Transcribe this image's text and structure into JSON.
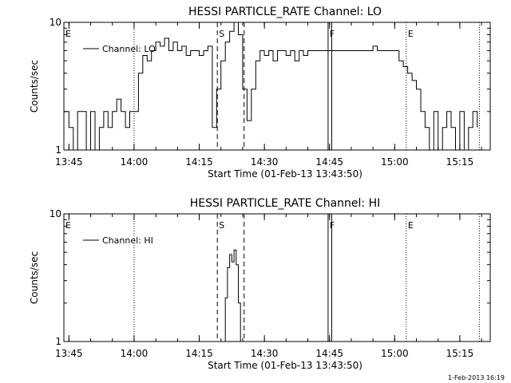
{
  "stamp": "1-Feb-2013 16:19",
  "xlabel": "Start Time (01-Feb-13 13:43:50)",
  "ylabel": "Counts/sec",
  "chart_data": [
    {
      "type": "line",
      "title": "HESSI PARTICLE_RATE Channel: LO",
      "legend": "Channel: LO",
      "xrange": [
        "13:43:50",
        "15:22:00"
      ],
      "ylim": [
        1,
        10
      ],
      "log_y": true,
      "x_ticks": [
        "13:45",
        "14:00",
        "14:15",
        "14:30",
        "14:45",
        "15:00",
        "15:15"
      ],
      "y_ticks": [
        "1",
        "10"
      ],
      "markers": [
        {
          "label": "E",
          "time": "13:43:50",
          "style": "dotted"
        },
        {
          "label": "",
          "time": "14:00:00",
          "style": "dotted"
        },
        {
          "label": "S",
          "time": "14:19:10",
          "style": "dashed"
        },
        {
          "label": "",
          "time": "14:25:20",
          "style": "dashed"
        },
        {
          "label": "F",
          "time": "14:44:40",
          "style": "solid"
        },
        {
          "label": "",
          "time": "14:45:30",
          "style": "solid"
        },
        {
          "label": "E",
          "time": "15:02:40",
          "style": "dotted"
        },
        {
          "label": "",
          "time": "15:19:30",
          "style": "dotted"
        }
      ],
      "series": [
        {
          "x": [
            "13:44:00",
            "13:45:00",
            "13:46:00",
            "13:47:00",
            "13:48:00",
            "13:49:00",
            "13:50:00",
            "13:51:00",
            "13:52:00",
            "13:53:00",
            "13:54:00",
            "13:55:00",
            "13:56:00",
            "13:57:00",
            "13:58:00",
            "13:59:00",
            "14:00:00",
            "14:01:00",
            "14:02:00",
            "14:03:00",
            "14:04:00",
            "14:05:00",
            "14:06:00",
            "14:07:00",
            "14:08:00",
            "14:09:00",
            "14:10:00",
            "14:11:00",
            "14:12:00",
            "14:13:00",
            "14:14:00",
            "14:15:00",
            "14:16:00",
            "14:17:00",
            "14:18:00",
            "14:19:00",
            "14:20:00",
            "14:21:00",
            "14:22:00",
            "14:23:00",
            "14:24:00",
            "14:25:00",
            "14:26:00",
            "14:27:00",
            "14:28:00",
            "14:29:00",
            "14:30:00",
            "14:31:00",
            "14:32:00",
            "14:33:00",
            "14:34:00",
            "14:35:00",
            "14:36:00",
            "14:37:00",
            "14:38:00",
            "14:39:00",
            "14:40:00",
            "14:41:00",
            "14:42:00",
            "14:43:00",
            "14:44:00",
            "14:45:00",
            "14:46:00",
            "14:47:00",
            "14:48:00",
            "14:49:00",
            "14:50:00",
            "14:51:00",
            "14:52:00",
            "14:53:00",
            "14:54:00",
            "14:55:00",
            "14:56:00",
            "14:57:00",
            "14:58:00",
            "14:59:00",
            "15:00:00",
            "15:01:00",
            "15:02:00",
            "15:03:00",
            "15:04:00",
            "15:05:00",
            "15:06:00",
            "15:07:00",
            "15:08:00",
            "15:09:00",
            "15:10:00",
            "15:11:00",
            "15:12:00",
            "15:13:00",
            "15:14:00",
            "15:15:00",
            "15:16:00",
            "15:17:00",
            "15:18:00",
            "15:19:00"
          ],
          "y": [
            2,
            1.5,
            1,
            2,
            2,
            1,
            2,
            1,
            1.5,
            2,
            1.5,
            2,
            2.5,
            2,
            1.5,
            2,
            2,
            4,
            5.5,
            5,
            6,
            7,
            6.5,
            7.5,
            6,
            7,
            6,
            6.5,
            5.5,
            6,
            6,
            5.5,
            6,
            6.5,
            1.5,
            3,
            5,
            7,
            8.5,
            10,
            8,
            3,
            1.7,
            3,
            5,
            6,
            5.5,
            6,
            5,
            6,
            6,
            5.5,
            6,
            5,
            6,
            5.5,
            6,
            6,
            6,
            6,
            6,
            6,
            6,
            6,
            6,
            6,
            6,
            6,
            6,
            6,
            6,
            6.5,
            6,
            6,
            6,
            6,
            6,
            5,
            4.5,
            4,
            3.5,
            3,
            2,
            1.5,
            1,
            2,
            1,
            1.5,
            2,
            1.5,
            1,
            2,
            1,
            1.5,
            2,
            1.5
          ]
        }
      ]
    },
    {
      "type": "line",
      "title": "HESSI PARTICLE_RATE Channel: HI",
      "legend": "Channel: HI",
      "xrange": [
        "13:43:50",
        "15:22:00"
      ],
      "ylim": [
        1,
        10
      ],
      "log_y": true,
      "x_ticks": [
        "13:45",
        "14:00",
        "14:15",
        "14:30",
        "14:45",
        "15:00",
        "15:15"
      ],
      "y_ticks": [
        "1",
        "10"
      ],
      "markers": [
        {
          "label": "E",
          "time": "13:43:50",
          "style": "dotted"
        },
        {
          "label": "",
          "time": "14:00:00",
          "style": "dotted"
        },
        {
          "label": "S",
          "time": "14:19:10",
          "style": "dashed"
        },
        {
          "label": "",
          "time": "14:25:20",
          "style": "dashed"
        },
        {
          "label": "F",
          "time": "14:44:40",
          "style": "solid"
        },
        {
          "label": "",
          "time": "14:45:30",
          "style": "solid"
        },
        {
          "label": "E",
          "time": "15:02:40",
          "style": "dotted"
        },
        {
          "label": "",
          "time": "15:19:30",
          "style": "dotted"
        }
      ],
      "series": [
        {
          "x": [
            "14:20:30",
            "14:21:00",
            "14:21:30",
            "14:22:00",
            "14:22:30",
            "14:23:00",
            "14:23:30",
            "14:24:00",
            "14:24:30"
          ],
          "y": [
            1,
            2.2,
            3.8,
            4.8,
            4.2,
            5.2,
            4,
            2,
            1
          ]
        }
      ]
    }
  ]
}
